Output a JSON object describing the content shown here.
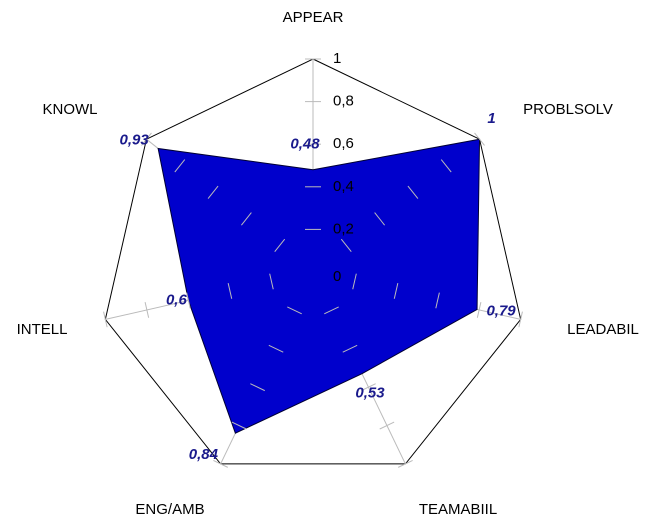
{
  "chart_data": {
    "type": "radar",
    "categories": [
      "APPEAR",
      "PROBLSOLV",
      "LEADABIL",
      "TEAMABIIL",
      "ENG/AMB",
      "INTELL",
      "KNOWL"
    ],
    "values": [
      0.48,
      1,
      0.79,
      0.53,
      0.84,
      0.6,
      0.93
    ],
    "value_labels": [
      "0,48",
      "1",
      "0,79",
      "0,53",
      "0,84",
      "0,6",
      "0,93"
    ],
    "color": "#0000cc",
    "ylim": [
      0,
      1
    ],
    "yticks": [
      0,
      {
        "value": 0.2,
        "label": "0,2"
      },
      {
        "value": 0.4,
        "label": "0,4"
      },
      {
        "value": 0.6,
        "label": "0,6"
      },
      {
        "value": 0.8,
        "label": "0,8"
      },
      1
    ]
  }
}
